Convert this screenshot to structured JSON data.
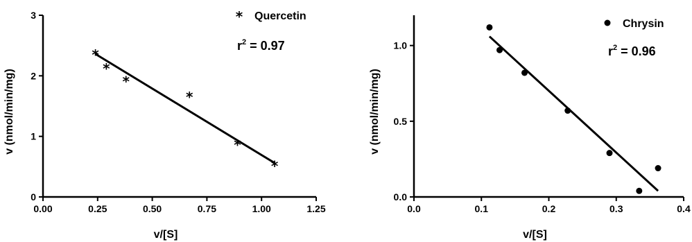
{
  "chart_data": [
    {
      "type": "scatter",
      "xlabel": "v/[S]",
      "ylabel": "v (nmol/min/mg)",
      "xlim": [
        0,
        1.25
      ],
      "ylim": [
        0,
        3
      ],
      "xticks": [
        "0.00",
        "0.25",
        "0.50",
        "0.75",
        "1.00",
        "1.25"
      ],
      "yticks": [
        "0",
        "1",
        "2",
        "3"
      ],
      "grid": false,
      "legend_position": "top-right",
      "series": [
        {
          "name": "Quercetin",
          "marker": "asterisk",
          "points": [
            {
              "x": 0.24,
              "y": 2.37
            },
            {
              "x": 0.29,
              "y": 2.14
            },
            {
              "x": 0.38,
              "y": 1.93
            },
            {
              "x": 0.67,
              "y": 1.67
            },
            {
              "x": 0.89,
              "y": 0.88
            },
            {
              "x": 1.06,
              "y": 0.53
            }
          ],
          "fit_line": [
            {
              "x": 0.24,
              "y": 2.36
            },
            {
              "x": 1.06,
              "y": 0.56
            }
          ]
        }
      ],
      "annotation": {
        "r_label": "r",
        "r_exp": "2",
        "r_value": " = 0.97"
      }
    },
    {
      "type": "scatter",
      "xlabel": "v/[S]",
      "ylabel": "v (nmol/min/mg)",
      "xlim": [
        0,
        0.4
      ],
      "ylim": [
        0,
        1.2
      ],
      "xticks": [
        "0.0",
        "0.1",
        "0.2",
        "0.3",
        "0.4"
      ],
      "yticks": [
        "0.0",
        "0.5",
        "1.0"
      ],
      "grid": false,
      "legend_position": "top-right",
      "series": [
        {
          "name": "Chrysin",
          "marker": "circle",
          "points": [
            {
              "x": 0.112,
              "y": 1.12
            },
            {
              "x": 0.127,
              "y": 0.97
            },
            {
              "x": 0.164,
              "y": 0.82
            },
            {
              "x": 0.228,
              "y": 0.57
            },
            {
              "x": 0.29,
              "y": 0.29
            },
            {
              "x": 0.334,
              "y": 0.04
            },
            {
              "x": 0.362,
              "y": 0.19
            }
          ],
          "fit_line": [
            {
              "x": 0.112,
              "y": 1.06
            },
            {
              "x": 0.362,
              "y": 0.04
            }
          ]
        }
      ],
      "annotation": {
        "r_label": "r",
        "r_exp": "2",
        "r_value": " = 0.96"
      }
    }
  ]
}
